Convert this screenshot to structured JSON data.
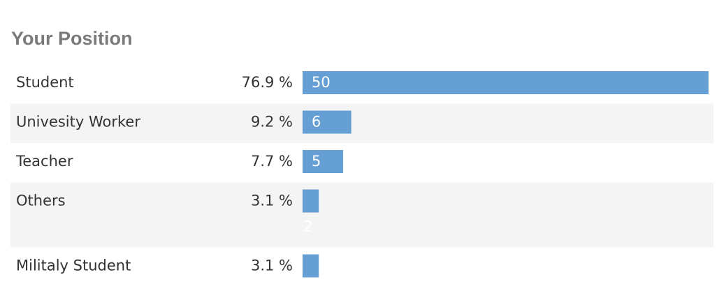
{
  "chart_data": {
    "type": "bar",
    "title": "Your Position",
    "categories": [
      "Student",
      "Univesity Worker",
      "Teacher",
      "Others",
      "Militaly Student"
    ],
    "values": [
      50,
      6,
      5,
      2,
      2
    ],
    "percent_labels": [
      "76.9 %",
      "9.2 %",
      "7.7 %",
      "3.1 %",
      "3.1 %"
    ],
    "color": "#659fd3"
  }
}
